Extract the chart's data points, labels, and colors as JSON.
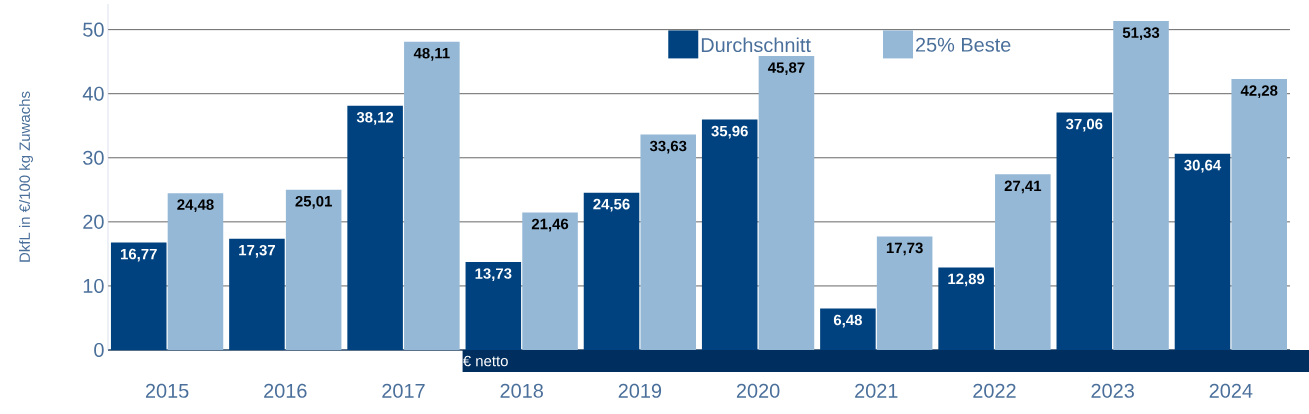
{
  "chart_data": {
    "type": "bar",
    "ylabel": "DkfL in €/100 kg Zuwachs",
    "categories": [
      "2015",
      "2016",
      "2017",
      "2018",
      "2019",
      "2020",
      "2021",
      "2022",
      "2023",
      "2024"
    ],
    "series": [
      {
        "name": "Durchschnitt",
        "color": "#00427f",
        "values": [
          16.77,
          17.37,
          38.12,
          13.73,
          24.56,
          35.96,
          6.48,
          12.89,
          37.06,
          30.64
        ],
        "value_labels": [
          "16,77",
          "17,37",
          "38,12",
          "13,73",
          "24,56",
          "35,96",
          "6,48",
          "12,89",
          "37,06",
          "30,64"
        ]
      },
      {
        "name": "25% Beste",
        "color": "#94b8d6",
        "values": [
          24.48,
          25.01,
          48.11,
          21.46,
          33.63,
          45.87,
          17.73,
          27.41,
          51.33,
          42.28
        ],
        "value_labels": [
          "24,48",
          "25,01",
          "48,11",
          "21,46",
          "33,63",
          "45,87",
          "17,73",
          "27,41",
          "51,33",
          "42,28"
        ]
      }
    ],
    "ylim": [
      0,
      54
    ],
    "yticks": [
      0,
      10,
      20,
      30,
      40,
      50
    ],
    "grid": "y",
    "legend": "top",
    "annotations": [
      "€ netto"
    ]
  }
}
